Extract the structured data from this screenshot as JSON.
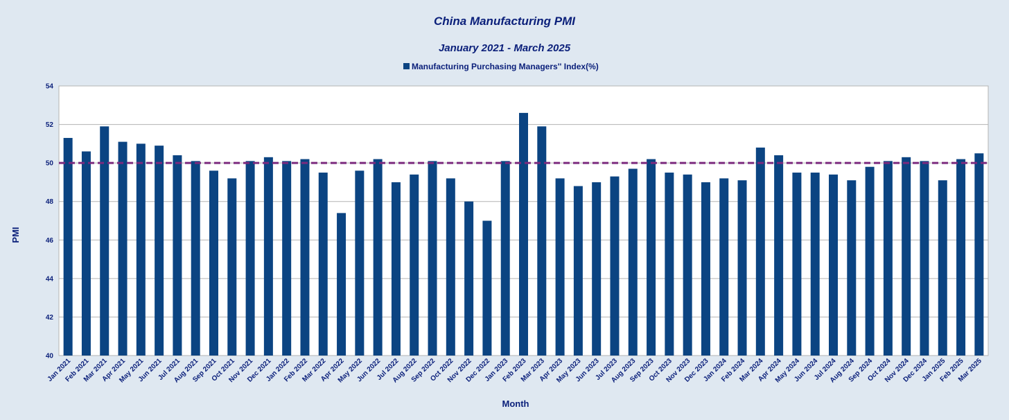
{
  "chart_data": {
    "type": "bar",
    "title": "China Manufacturing PMI",
    "subtitle": "January 2021 - March 2025",
    "xlabel": "Month",
    "ylabel": "PMI",
    "ylim": [
      40,
      54
    ],
    "yticks": [
      40,
      42,
      44,
      46,
      48,
      50,
      52,
      54
    ],
    "grid": true,
    "legend_position": "top-center",
    "reference_line": {
      "value": 50,
      "color": "#7b2a7e",
      "style": "dashed"
    },
    "colors": {
      "bar": "#0b4482",
      "background": "#dfe8f1",
      "plot_background": "#ffffff",
      "text": "#0a1f7a",
      "grid": "#b3b3b3"
    },
    "categories": [
      "Jan 2021",
      "Feb 2021",
      "Mar 2021",
      "Apr 2021",
      "May 2021",
      "Jun 2021",
      "Jul 2021",
      "Aug 2021",
      "Sep 2021",
      "Oct 2021",
      "Nov 2021",
      "Dec 2021",
      "Jan 2022",
      "Feb 2022",
      "Mar 2022",
      "Apr 2022",
      "May 2022",
      "Jun 2022",
      "Jul 2022",
      "Aug 2022",
      "Sep 2022",
      "Oct 2022",
      "Nov 2022",
      "Dec 2022",
      "Jan 2023",
      "Feb 2023",
      "Mar 2023",
      "Apr 2023",
      "May 2023",
      "Jun 2023",
      "Jul 2023",
      "Aug 2023",
      "Sep 2023",
      "Oct 2023",
      "Nov 2023",
      "Dec 2023",
      "Jan 2024",
      "Feb 2024",
      "Mar 2024",
      "Apr 2024",
      "May 2024",
      "Jun 2024",
      "Jul 2024",
      "Aug 2024",
      "Sep 2024",
      "Oct 2024",
      "Nov 2024",
      "Dec 2024",
      "Jan 2025",
      "Feb 2025",
      "Mar 2025"
    ],
    "series": [
      {
        "name": "Manufacturing Purchasing Managers'' Index(%)",
        "values": [
          51.3,
          50.6,
          51.9,
          51.1,
          51.0,
          50.9,
          50.4,
          50.1,
          49.6,
          49.2,
          50.1,
          50.3,
          50.1,
          50.2,
          49.5,
          47.4,
          49.6,
          50.2,
          49.0,
          49.4,
          50.1,
          49.2,
          48.0,
          47.0,
          50.1,
          52.6,
          51.9,
          49.2,
          48.8,
          49.0,
          49.3,
          49.7,
          50.2,
          49.5,
          49.4,
          49.0,
          49.2,
          49.1,
          50.8,
          50.4,
          49.5,
          49.5,
          49.4,
          49.1,
          49.8,
          50.1,
          50.3,
          50.1,
          49.1,
          50.2,
          50.5
        ]
      }
    ]
  }
}
